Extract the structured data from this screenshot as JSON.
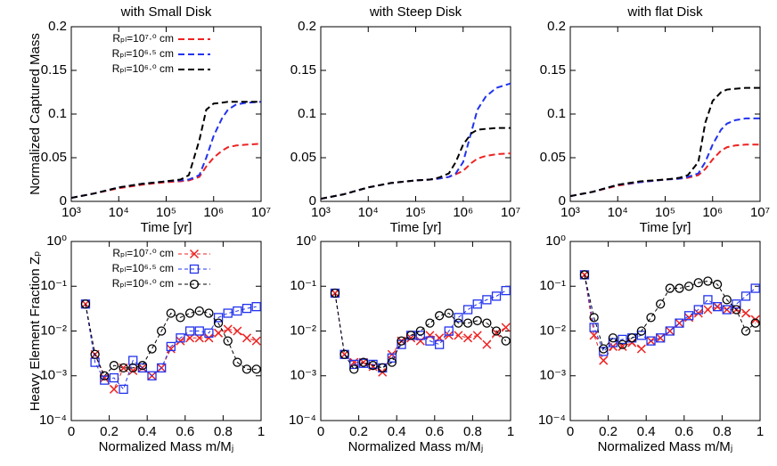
{
  "chart_data": [
    {
      "type": "line",
      "title": "with Small Disk",
      "x_label": "Time [yr]",
      "y_label": "Normalized Captured Mass",
      "xlog": true,
      "line_style": "dashed",
      "legend": "upper left",
      "x": [
        1000,
        3000,
        10000,
        30000,
        100000,
        200000,
        300000,
        500000,
        700000,
        1000000,
        1500000,
        2000000,
        3000000,
        5000000,
        10000000
      ],
      "xlim": [
        1000,
        10000000
      ],
      "xticks": [
        {
          "value": 1000,
          "label": "10³"
        },
        {
          "value": 10000,
          "label": "10⁴"
        },
        {
          "value": 100000,
          "label": "10⁵"
        },
        {
          "value": 1000000,
          "label": "10⁶"
        },
        {
          "value": 10000000,
          "label": "10⁷"
        }
      ],
      "ylim": [
        0,
        0.2
      ],
      "yticks": [
        0,
        0.05,
        0.1,
        0.15,
        0.2
      ],
      "series": [
        {
          "name": "Rₚₗ=10⁷·⁰ cm",
          "color": "#ee2222",
          "values": [
            0.004,
            0.009,
            0.015,
            0.019,
            0.022,
            0.023,
            0.024,
            0.028,
            0.04,
            0.05,
            0.058,
            0.062,
            0.064,
            0.065,
            0.066
          ]
        },
        {
          "name": "Rₚₗ=10⁶·⁵ cm",
          "color": "#2233ee",
          "values": [
            0.004,
            0.009,
            0.016,
            0.02,
            0.023,
            0.024,
            0.025,
            0.03,
            0.05,
            0.075,
            0.095,
            0.105,
            0.111,
            0.113,
            0.114
          ]
        },
        {
          "name": "Rₚₗ=10⁶·⁰ cm",
          "color": "#000000",
          "values": [
            0.004,
            0.009,
            0.016,
            0.02,
            0.023,
            0.025,
            0.03,
            0.07,
            0.105,
            0.112,
            0.113,
            0.114,
            0.114,
            0.114,
            0.114
          ]
        }
      ]
    },
    {
      "type": "line",
      "title": "with Steep Disk",
      "x_label": "Time [yr]",
      "xlog": true,
      "line_style": "dashed",
      "x": [
        1000,
        3000,
        10000,
        30000,
        100000,
        200000,
        300000,
        500000,
        700000,
        1000000,
        1500000,
        2000000,
        3000000,
        5000000,
        10000000
      ],
      "xlim": [
        1000,
        10000000
      ],
      "xticks": [
        {
          "value": 1000,
          "label": "10³"
        },
        {
          "value": 10000,
          "label": "10⁴"
        },
        {
          "value": 100000,
          "label": "10⁵"
        },
        {
          "value": 1000000,
          "label": "10⁶"
        },
        {
          "value": 10000000,
          "label": "10⁷"
        }
      ],
      "ylim": [
        0,
        0.2
      ],
      "yticks": [
        0,
        0.05,
        0.1,
        0.15,
        0.2
      ],
      "series": [
        {
          "color": "#ee2222",
          "values": [
            0.003,
            0.008,
            0.016,
            0.021,
            0.024,
            0.025,
            0.026,
            0.028,
            0.031,
            0.035,
            0.044,
            0.049,
            0.052,
            0.054,
            0.055
          ]
        },
        {
          "color": "#2233ee",
          "values": [
            0.003,
            0.008,
            0.016,
            0.021,
            0.024,
            0.025,
            0.026,
            0.028,
            0.032,
            0.045,
            0.08,
            0.105,
            0.12,
            0.13,
            0.135
          ]
        },
        {
          "color": "#000000",
          "values": [
            0.003,
            0.008,
            0.016,
            0.021,
            0.024,
            0.025,
            0.027,
            0.032,
            0.045,
            0.065,
            0.078,
            0.082,
            0.083,
            0.084,
            0.084
          ]
        }
      ]
    },
    {
      "type": "line",
      "title": "with flat Disk",
      "x_label": "Time [yr]",
      "xlog": true,
      "line_style": "dashed",
      "x": [
        1000,
        3000,
        10000,
        30000,
        100000,
        200000,
        300000,
        500000,
        700000,
        1000000,
        1500000,
        2000000,
        3000000,
        5000000,
        10000000
      ],
      "xlim": [
        1000,
        10000000
      ],
      "xticks": [
        {
          "value": 1000,
          "label": "10³"
        },
        {
          "value": 10000,
          "label": "10⁴"
        },
        {
          "value": 100000,
          "label": "10⁵"
        },
        {
          "value": 1000000,
          "label": "10⁶"
        },
        {
          "value": 10000000,
          "label": "10⁷"
        }
      ],
      "ylim": [
        0,
        0.2
      ],
      "yticks": [
        0,
        0.05,
        0.1,
        0.15,
        0.2
      ],
      "series": [
        {
          "color": "#ee2222",
          "values": [
            0.006,
            0.011,
            0.018,
            0.022,
            0.025,
            0.026,
            0.027,
            0.03,
            0.037,
            0.048,
            0.058,
            0.062,
            0.064,
            0.065,
            0.065
          ]
        },
        {
          "color": "#2233ee",
          "values": [
            0.006,
            0.011,
            0.019,
            0.022,
            0.025,
            0.026,
            0.028,
            0.032,
            0.045,
            0.065,
            0.082,
            0.089,
            0.093,
            0.095,
            0.095
          ]
        },
        {
          "color": "#000000",
          "values": [
            0.006,
            0.011,
            0.019,
            0.023,
            0.025,
            0.027,
            0.03,
            0.045,
            0.09,
            0.115,
            0.125,
            0.128,
            0.129,
            0.13,
            0.13
          ]
        }
      ]
    },
    {
      "type": "line",
      "x_label": "Normalized Mass m/Mⱼ",
      "y_label": "Heavy Element Fraction Zₚ",
      "ylog": true,
      "line_style": "dashed",
      "legend": "upper left",
      "x": [
        0.075,
        0.125,
        0.175,
        0.225,
        0.275,
        0.325,
        0.375,
        0.425,
        0.475,
        0.525,
        0.575,
        0.625,
        0.675,
        0.725,
        0.775,
        0.825,
        0.875,
        0.925,
        0.975
      ],
      "xlim": [
        0,
        1
      ],
      "xticks": [
        0,
        0.2,
        0.4,
        0.6,
        0.8,
        1
      ],
      "ylim": [
        0.0001,
        1
      ],
      "yticks": [
        {
          "value": 0.0001,
          "label": "10⁻⁴"
        },
        {
          "value": 0.001,
          "label": "10⁻³"
        },
        {
          "value": 0.01,
          "label": "10⁻²"
        },
        {
          "value": 0.1,
          "label": "10⁻¹"
        },
        {
          "value": 1,
          "label": "10⁰"
        }
      ],
      "series": [
        {
          "name": "Rₚₗ=10⁷·⁰ cm",
          "color": "#ee2222",
          "marker": "x",
          "values": [
            0.04,
            0.003,
            0.0009,
            0.0005,
            0.0015,
            0.0013,
            0.0015,
            0.001,
            0.0015,
            0.004,
            0.006,
            0.007,
            0.007,
            0.007,
            0.009,
            0.011,
            0.01,
            0.007,
            0.006
          ]
        },
        {
          "name": "Rₚₗ=10⁶·⁵ cm",
          "color": "#2233ee",
          "marker": "square",
          "values": [
            0.04,
            0.002,
            0.0008,
            0.0009,
            0.0005,
            0.0022,
            0.0015,
            0.001,
            0.0015,
            0.0045,
            0.007,
            0.01,
            0.01,
            0.009,
            0.02,
            0.025,
            0.028,
            0.032,
            0.035
          ]
        },
        {
          "name": "Rₚₗ=10⁶·⁰ cm",
          "color": "#000000",
          "marker": "circle",
          "values": [
            0.04,
            0.003,
            0.001,
            0.0017,
            0.0015,
            0.0015,
            0.0017,
            0.004,
            0.01,
            0.025,
            0.02,
            0.025,
            0.028,
            0.025,
            0.015,
            0.006,
            0.002,
            0.0014,
            0.0014
          ]
        }
      ]
    },
    {
      "type": "line",
      "x_label": "Normalized Mass m/Mⱼ",
      "ylog": true,
      "line_style": "dashed",
      "x": [
        0.075,
        0.125,
        0.175,
        0.225,
        0.275,
        0.325,
        0.375,
        0.425,
        0.475,
        0.525,
        0.575,
        0.625,
        0.675,
        0.725,
        0.775,
        0.825,
        0.875,
        0.925,
        0.975
      ],
      "xlim": [
        0,
        1
      ],
      "xticks": [
        0,
        0.2,
        0.4,
        0.6,
        0.8,
        1
      ],
      "ylim": [
        0.0001,
        1
      ],
      "yticks": [
        {
          "value": 0.0001,
          "label": "10⁻⁴"
        },
        {
          "value": 0.001,
          "label": "10⁻³"
        },
        {
          "value": 0.01,
          "label": "10⁻²"
        },
        {
          "value": 0.1,
          "label": "10⁻¹"
        },
        {
          "value": 1,
          "label": "10⁰"
        }
      ],
      "series": [
        {
          "color": "#ee2222",
          "marker": "x",
          "values": [
            0.07,
            0.003,
            0.002,
            0.002,
            0.0016,
            0.0012,
            0.003,
            0.006,
            0.007,
            0.006,
            0.008,
            0.007,
            0.008,
            0.008,
            0.007,
            0.008,
            0.005,
            0.009,
            0.012
          ]
        },
        {
          "color": "#2233ee",
          "marker": "square",
          "values": [
            0.07,
            0.003,
            0.0018,
            0.0019,
            0.0018,
            0.0015,
            0.0025,
            0.005,
            0.008,
            0.008,
            0.006,
            0.005,
            0.01,
            0.02,
            0.03,
            0.04,
            0.05,
            0.06,
            0.08
          ]
        },
        {
          "color": "#000000",
          "marker": "circle",
          "values": [
            0.07,
            0.003,
            0.0014,
            0.002,
            0.0017,
            0.0015,
            0.002,
            0.006,
            0.008,
            0.01,
            0.015,
            0.022,
            0.025,
            0.015,
            0.015,
            0.017,
            0.015,
            0.01,
            0.006
          ]
        }
      ]
    },
    {
      "type": "line",
      "x_label": "Normalized Mass m/Mⱼ",
      "ylog": true,
      "line_style": "dashed",
      "x": [
        0.075,
        0.125,
        0.175,
        0.225,
        0.275,
        0.325,
        0.375,
        0.425,
        0.475,
        0.525,
        0.575,
        0.625,
        0.675,
        0.725,
        0.775,
        0.825,
        0.875,
        0.925,
        0.975
      ],
      "xlim": [
        0,
        1
      ],
      "xticks": [
        0,
        0.2,
        0.4,
        0.6,
        0.8,
        1
      ],
      "ylim": [
        0.0001,
        1
      ],
      "yticks": [
        {
          "value": 0.0001,
          "label": "10⁻⁴"
        },
        {
          "value": 0.001,
          "label": "10⁻³"
        },
        {
          "value": 0.01,
          "label": "10⁻²"
        },
        {
          "value": 0.1,
          "label": "10⁻¹"
        },
        {
          "value": 1,
          "label": "10⁰"
        }
      ],
      "series": [
        {
          "color": "#ee2222",
          "marker": "x",
          "values": [
            0.18,
            0.008,
            0.0022,
            0.0045,
            0.0045,
            0.0055,
            0.004,
            0.006,
            0.007,
            0.01,
            0.015,
            0.02,
            0.025,
            0.03,
            0.035,
            0.03,
            0.03,
            0.025,
            0.018
          ]
        },
        {
          "color": "#2233ee",
          "marker": "square",
          "values": [
            0.18,
            0.012,
            0.0035,
            0.0055,
            0.0065,
            0.007,
            0.008,
            0.006,
            0.007,
            0.01,
            0.015,
            0.022,
            0.03,
            0.05,
            0.035,
            0.03,
            0.04,
            0.06,
            0.09
          ]
        },
        {
          "color": "#000000",
          "marker": "circle",
          "values": [
            0.18,
            0.02,
            0.004,
            0.007,
            0.005,
            0.007,
            0.01,
            0.02,
            0.04,
            0.09,
            0.09,
            0.1,
            0.12,
            0.13,
            0.11,
            0.05,
            0.03,
            0.01,
            0.015
          ]
        }
      ]
    }
  ]
}
